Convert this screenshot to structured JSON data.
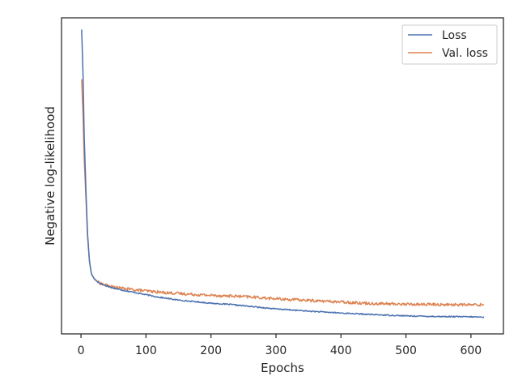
{
  "chart_data": {
    "type": "line",
    "xlabel": "Epochs",
    "ylabel": "Negative log-likelihood",
    "xlim": [
      -30,
      650
    ],
    "ylim": [
      0.0,
      1.0
    ],
    "xticks": [
      0,
      100,
      200,
      300,
      400,
      500,
      600
    ],
    "ytick_labels_visible": false,
    "grid": false,
    "legend_position": "top-right",
    "series": [
      {
        "name": "Loss",
        "color": "#4c72b0",
        "x": [
          1,
          3,
          5,
          8,
          10,
          13,
          16,
          20,
          25,
          30,
          40,
          50,
          60,
          80,
          100,
          120,
          150,
          180,
          200,
          230,
          260,
          300,
          350,
          400,
          450,
          500,
          550,
          600,
          620
        ],
        "y": [
          0.963,
          0.83,
          0.62,
          0.43,
          0.32,
          0.23,
          0.19,
          0.175,
          0.165,
          0.159,
          0.151,
          0.145,
          0.14,
          0.132,
          0.124,
          0.116,
          0.107,
          0.101,
          0.097,
          0.093,
          0.087,
          0.079,
          0.072,
          0.066,
          0.061,
          0.057,
          0.055,
          0.054,
          0.053
        ]
      },
      {
        "name": "Val. loss",
        "color": "#dd8452",
        "x": [
          1,
          3,
          5,
          8,
          10,
          13,
          16,
          20,
          25,
          30,
          40,
          50,
          60,
          80,
          100,
          120,
          150,
          180,
          200,
          230,
          260,
          300,
          350,
          400,
          450,
          500,
          550,
          600,
          620
        ],
        "y": [
          0.806,
          0.7,
          0.55,
          0.41,
          0.31,
          0.23,
          0.19,
          0.176,
          0.166,
          0.16,
          0.153,
          0.148,
          0.145,
          0.14,
          0.136,
          0.132,
          0.128,
          0.124,
          0.122,
          0.12,
          0.117,
          0.111,
          0.106,
          0.101,
          0.096,
          0.094,
          0.093,
          0.092,
          0.092
        ]
      }
    ]
  }
}
